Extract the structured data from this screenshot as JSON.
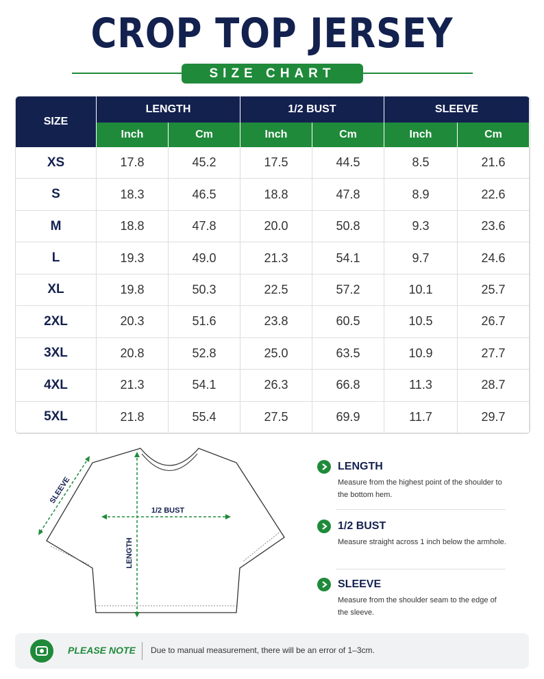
{
  "header": {
    "title": "CROP TOP JERSEY",
    "subtitle": "SIZE CHART"
  },
  "table": {
    "size_label": "SIZE",
    "groups": [
      "LENGTH",
      "1/2 BUST",
      "SLEEVE"
    ],
    "units": [
      "Inch",
      "Cm",
      "Inch",
      "Cm",
      "Inch",
      "Cm"
    ],
    "rows": [
      [
        "XS",
        "17.8",
        "45.2",
        "17.5",
        "44.5",
        "8.5",
        "21.6"
      ],
      [
        "S",
        "18.3",
        "46.5",
        "18.8",
        "47.8",
        "8.9",
        "22.6"
      ],
      [
        "M",
        "18.8",
        "47.8",
        "20.0",
        "50.8",
        "9.3",
        "23.6"
      ],
      [
        "L",
        "19.3",
        "49.0",
        "21.3",
        "54.1",
        "9.7",
        "24.6"
      ],
      [
        "XL",
        "19.8",
        "50.3",
        "22.5",
        "57.2",
        "10.1",
        "25.7"
      ],
      [
        "2XL",
        "20.3",
        "51.6",
        "23.8",
        "60.5",
        "10.5",
        "26.7"
      ],
      [
        "3XL",
        "20.8",
        "52.8",
        "25.0",
        "63.5",
        "10.9",
        "27.7"
      ],
      [
        "4XL",
        "21.3",
        "54.1",
        "26.3",
        "66.8",
        "11.3",
        "28.7"
      ],
      [
        "5XL",
        "21.8",
        "55.4",
        "27.5",
        "69.9",
        "11.7",
        "29.7"
      ]
    ]
  },
  "diagram": {
    "sleeve": "SLEEVE",
    "bust": "1/2 BUST",
    "length": "LENGTH"
  },
  "guide": [
    {
      "title": "LENGTH",
      "text": "Measure from the highest point of the shoulder to the bottom hem."
    },
    {
      "title": "1/2 BUST",
      "text": "Measure straight across 1 inch below the armhole."
    },
    {
      "title": "SLEEVE",
      "text": "Measure from the shoulder seam to the edge of the sleeve."
    }
  ],
  "note": {
    "label": "PLEASE NOTE",
    "text": "Due to manual measurement, there will be an error of 1–3cm."
  }
}
